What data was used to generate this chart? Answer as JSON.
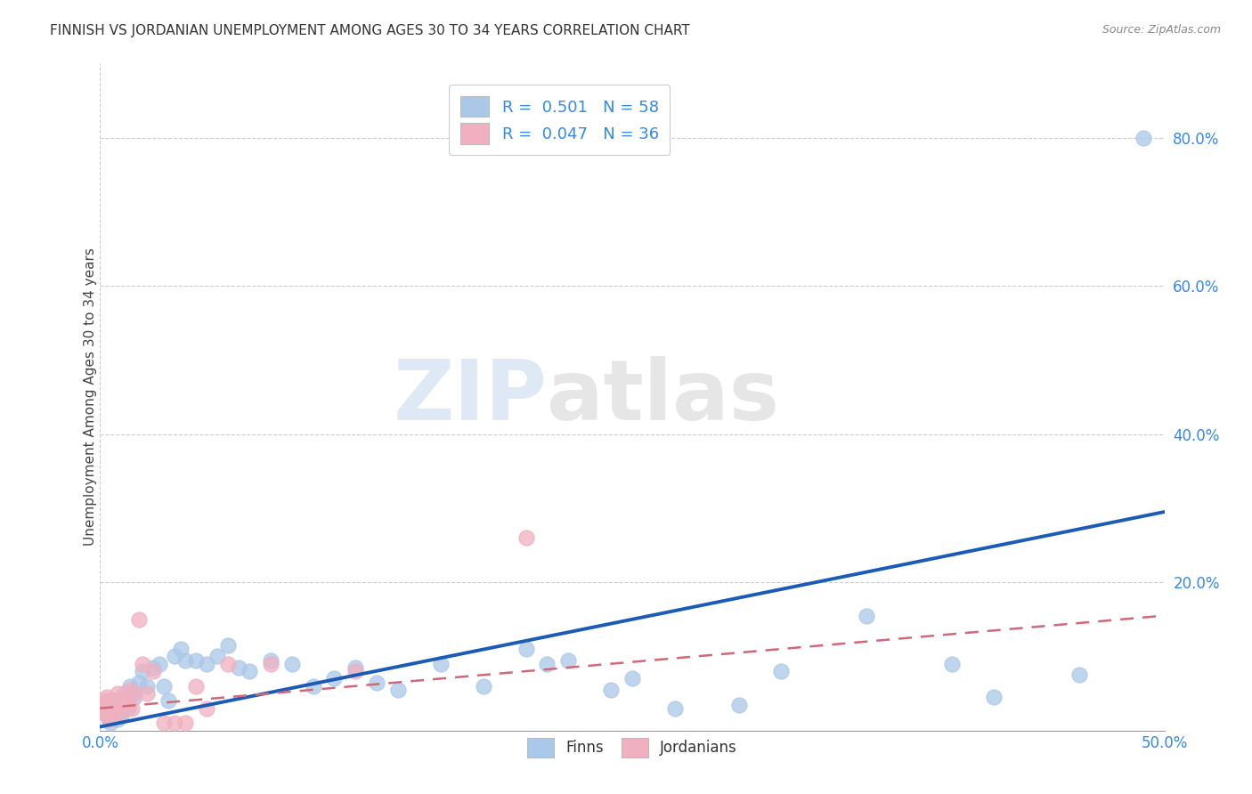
{
  "title": "FINNISH VS JORDANIAN UNEMPLOYMENT AMONG AGES 30 TO 34 YEARS CORRELATION CHART",
  "source": "Source: ZipAtlas.com",
  "ylabel": "Unemployment Among Ages 30 to 34 years",
  "xlim": [
    0.0,
    0.5
  ],
  "ylim": [
    0.0,
    0.9
  ],
  "xticks": [
    0.0,
    0.5
  ],
  "xticklabels": [
    "0.0%",
    "50.0%"
  ],
  "yticks_right": [
    0.2,
    0.4,
    0.6,
    0.8
  ],
  "yticklabels_right": [
    "20.0%",
    "40.0%",
    "60.0%",
    "80.0%"
  ],
  "watermark_zip": "ZIP",
  "watermark_atlas": "atlas",
  "legend_line1": "R =  0.501   N = 58",
  "legend_line2": "R =  0.047   N = 36",
  "finns_color": "#aac8e8",
  "jordanians_color": "#f0b0c0",
  "finns_line_color": "#1a5cb5",
  "jordanians_line_color": "#d06878",
  "finns_x": [
    0.002,
    0.003,
    0.003,
    0.004,
    0.004,
    0.005,
    0.005,
    0.006,
    0.006,
    0.007,
    0.007,
    0.008,
    0.009,
    0.01,
    0.011,
    0.012,
    0.013,
    0.014,
    0.015,
    0.016,
    0.018,
    0.02,
    0.022,
    0.025,
    0.028,
    0.03,
    0.032,
    0.035,
    0.038,
    0.04,
    0.045,
    0.05,
    0.055,
    0.06,
    0.065,
    0.07,
    0.08,
    0.09,
    0.1,
    0.11,
    0.12,
    0.13,
    0.14,
    0.16,
    0.18,
    0.2,
    0.21,
    0.22,
    0.24,
    0.25,
    0.27,
    0.3,
    0.32,
    0.36,
    0.4,
    0.42,
    0.46,
    0.49
  ],
  "finns_y": [
    0.03,
    0.025,
    0.02,
    0.04,
    0.015,
    0.035,
    0.01,
    0.025,
    0.02,
    0.04,
    0.03,
    0.015,
    0.025,
    0.02,
    0.05,
    0.04,
    0.03,
    0.06,
    0.05,
    0.045,
    0.065,
    0.08,
    0.06,
    0.085,
    0.09,
    0.06,
    0.04,
    0.1,
    0.11,
    0.095,
    0.095,
    0.09,
    0.1,
    0.115,
    0.085,
    0.08,
    0.095,
    0.09,
    0.06,
    0.07,
    0.085,
    0.065,
    0.055,
    0.09,
    0.06,
    0.11,
    0.09,
    0.095,
    0.055,
    0.07,
    0.03,
    0.035,
    0.08,
    0.155,
    0.09,
    0.045,
    0.075,
    0.8
  ],
  "jordanians_x": [
    0.001,
    0.002,
    0.002,
    0.003,
    0.003,
    0.003,
    0.004,
    0.004,
    0.005,
    0.005,
    0.006,
    0.006,
    0.007,
    0.008,
    0.008,
    0.009,
    0.01,
    0.011,
    0.012,
    0.013,
    0.014,
    0.015,
    0.016,
    0.018,
    0.02,
    0.022,
    0.025,
    0.03,
    0.035,
    0.04,
    0.045,
    0.05,
    0.06,
    0.08,
    0.12,
    0.2
  ],
  "jordanians_y": [
    0.03,
    0.025,
    0.04,
    0.02,
    0.035,
    0.045,
    0.03,
    0.025,
    0.04,
    0.015,
    0.035,
    0.025,
    0.04,
    0.03,
    0.05,
    0.035,
    0.025,
    0.045,
    0.04,
    0.035,
    0.055,
    0.03,
    0.05,
    0.15,
    0.09,
    0.05,
    0.08,
    0.01,
    0.01,
    0.01,
    0.06,
    0.03,
    0.09,
    0.09,
    0.08,
    0.26
  ],
  "finns_trend": [
    0.0,
    0.5,
    0.005,
    0.295
  ],
  "jordanians_trend": [
    0.0,
    0.5,
    0.03,
    0.155
  ]
}
